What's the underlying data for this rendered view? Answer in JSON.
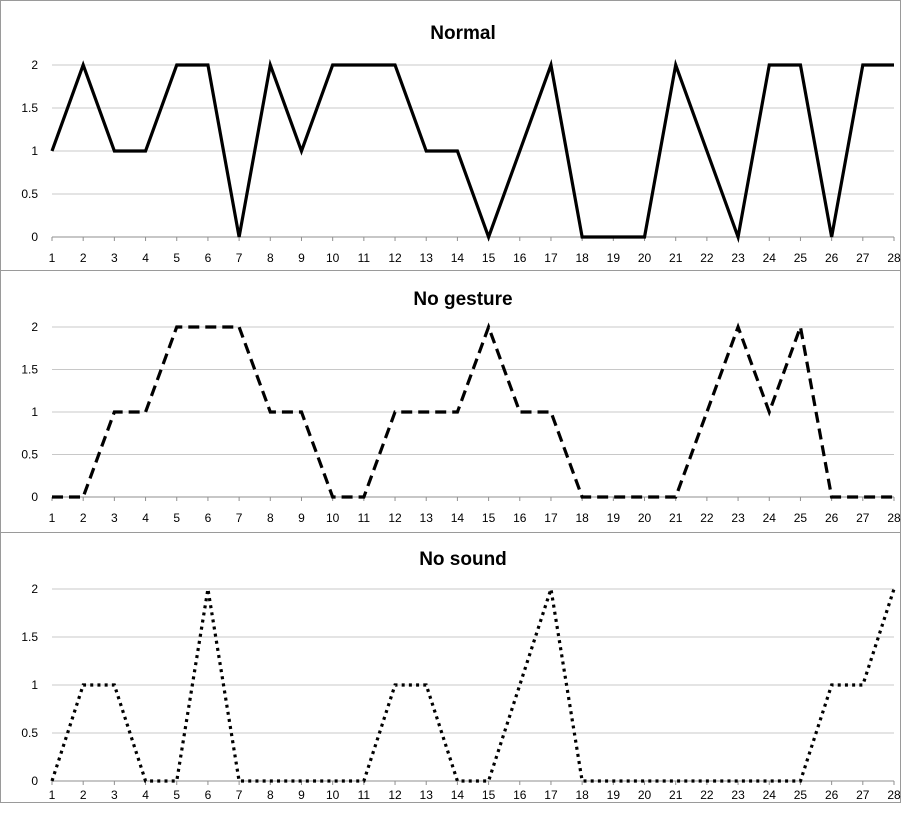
{
  "chart_data": [
    {
      "type": "line",
      "title": "Normal",
      "line_style": "solid",
      "x": [
        1,
        2,
        3,
        4,
        5,
        6,
        7,
        8,
        9,
        10,
        11,
        12,
        13,
        14,
        15,
        16,
        17,
        18,
        19,
        20,
        21,
        22,
        23,
        24,
        25,
        26,
        27,
        28
      ],
      "values": [
        1,
        2,
        1,
        1,
        2,
        2,
        0,
        2,
        1,
        2,
        2,
        2,
        1,
        1,
        0,
        1,
        2,
        0,
        0,
        0,
        2,
        1,
        0,
        2,
        2,
        0,
        2,
        2
      ],
      "ylim": [
        0,
        2
      ],
      "yticks": [
        "0",
        "0.5",
        "1",
        "1.5",
        "2"
      ],
      "grid": true,
      "xlabel": "",
      "ylabel": ""
    },
    {
      "type": "line",
      "title": "No gesture",
      "line_style": "dashed",
      "x": [
        1,
        2,
        3,
        4,
        5,
        6,
        7,
        8,
        9,
        10,
        11,
        12,
        13,
        14,
        15,
        16,
        17,
        18,
        19,
        20,
        21,
        22,
        23,
        24,
        25,
        26,
        27,
        28
      ],
      "values": [
        0,
        0,
        1,
        1,
        2,
        2,
        2,
        1,
        1,
        0,
        0,
        1,
        1,
        1,
        2,
        1,
        1,
        0,
        0,
        0,
        0,
        1,
        2,
        1,
        2,
        0,
        0,
        0
      ],
      "ylim": [
        0,
        2
      ],
      "yticks": [
        "0",
        "0.5",
        "1",
        "1.5",
        "2"
      ],
      "grid": true,
      "xlabel": "",
      "ylabel": ""
    },
    {
      "type": "line",
      "title": "No sound",
      "line_style": "dotted",
      "x": [
        1,
        2,
        3,
        4,
        5,
        6,
        7,
        8,
        9,
        10,
        11,
        12,
        13,
        14,
        15,
        16,
        17,
        18,
        19,
        20,
        21,
        22,
        23,
        24,
        25,
        26,
        27,
        28
      ],
      "values": [
        0,
        1,
        1,
        0,
        0,
        2,
        0,
        0,
        0,
        0,
        0,
        1,
        1,
        0,
        0,
        1,
        2,
        0,
        0,
        0,
        0,
        0,
        0,
        0,
        0,
        1,
        1,
        2
      ],
      "ylim": [
        0,
        2
      ],
      "yticks": [
        "0",
        "0.5",
        "1",
        "1.5",
        "2"
      ],
      "grid": true,
      "xlabel": "",
      "ylabel": ""
    }
  ]
}
